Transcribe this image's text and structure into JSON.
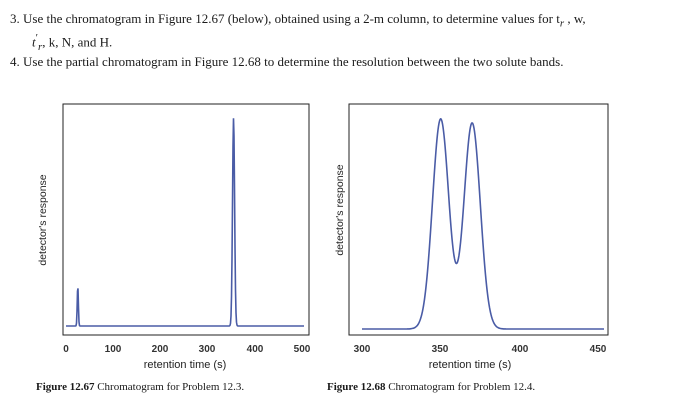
{
  "questions": {
    "q3_line1": "3. Use the chromatogram in Figure 12.67 (below), obtained using a 2-m column, to determine values for t",
    "q3_line1_sub": "r",
    "q3_line1_end": " , w,",
    "q3_line2_t": "t",
    "q3_line2_prime_sub": "r",
    "q3_line2_rest": ", k, N, and H.",
    "q4": "4. Use the partial chromatogram in Figure 12.68 to determine the resolution between the two solute bands."
  },
  "figure1": {
    "caption_number": "Figure 12.67",
    "caption_text": " Chromatogram for Problem 12.3.",
    "ylabel": "detector's response",
    "xlabel": "retention time (s)",
    "ticks": [
      "0",
      "100",
      "200",
      "300",
      "400",
      "500"
    ]
  },
  "figure2": {
    "caption_number": "Figure 12.68",
    "caption_text": " Chromatogram for Problem 12.4.",
    "ylabel": "detector's response",
    "xlabel": "retention time (s)",
    "ticks": [
      "300",
      "350",
      "400",
      "450"
    ]
  },
  "colors": {
    "trace": "#4a5ca6",
    "frame": "#222222"
  }
}
